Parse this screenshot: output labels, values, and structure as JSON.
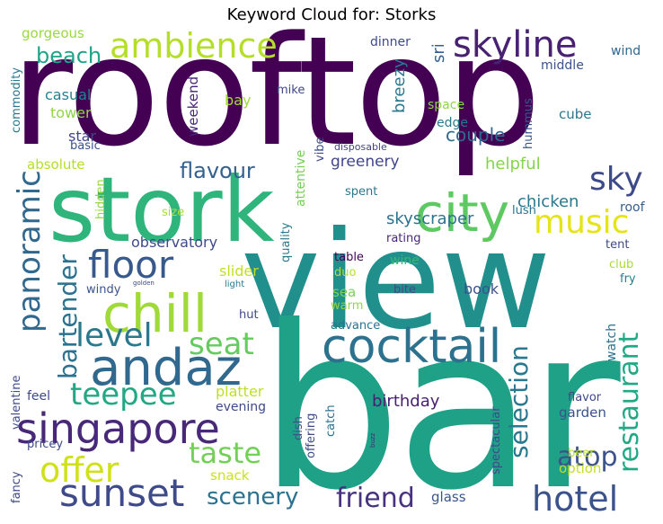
{
  "title": "Keyword Cloud for: Storks",
  "words": {
    "rooftop": "rooftop",
    "stork": "stork",
    "view": "view",
    "bar": "bar",
    "city": "city",
    "cocktail": "cocktail",
    "andaz": "andaz",
    "singapore": "singapore",
    "chill": "chill",
    "ambience": "ambience",
    "skyline": "skyline",
    "music": "music",
    "sunset": "sunset",
    "offer": "offer",
    "hotel": "hotel",
    "floor": "floor",
    "panoramic": "panoramic",
    "level": "level",
    "seat": "seat",
    "teepee": "teepee",
    "taste": "taste",
    "friend": "friend",
    "scenery": "scenery",
    "atop": "atop",
    "restaurant": "restaurant",
    "selection": "selection",
    "beach": "beach",
    "sky": "sky",
    "flavour": "flavour",
    "bartender": "bartender",
    "observatory": "observatory",
    "skyscraper": "skyscraper",
    "greenery": "greenery",
    "couple": "couple",
    "helpful": "helpful",
    "chicken": "chicken",
    "birthday": "birthday",
    "gorgeous": "gorgeous",
    "commodity": "commodity",
    "casual": "casual",
    "tower": "tower",
    "star": "star",
    "basic": "basic",
    "absolute": "absolute",
    "hidden": "hidden",
    "size": "size",
    "weekend": "weekend",
    "mike": "mike",
    "bay": "bay",
    "dinner": "dinner",
    "sri": "sri",
    "breezy": "breezy",
    "space": "space",
    "edge": "edge",
    "wind": "wind",
    "middle": "middle",
    "hummus": "hummus",
    "cube": "cube",
    "vibe": "vibe",
    "disposable": "disposable",
    "attentive": "attentive",
    "quality": "quality",
    "spent": "spent",
    "lush": "lush",
    "roof": "roof",
    "tent": "tent",
    "rating": "rating",
    "table": "table",
    "duo": "duo",
    "wine": "wine",
    "club": "club",
    "fry": "fry",
    "slider": "slider",
    "golden": "golden",
    "light": "light",
    "windy": "windy",
    "sea": "sea",
    "bite": "bite",
    "book": "book",
    "warm": "warm",
    "hut": "hut",
    "advance": "advance",
    "watch": "watch",
    "platter": "platter",
    "evening": "evening",
    "valentine": "valentine",
    "feel": "feel",
    "pricey": "pricey",
    "fancy": "fancy",
    "snack": "snack",
    "dish": "dish",
    "offering": "offering",
    "catch": "catch",
    "buzz": "buzz",
    "spectacular": "spectacular",
    "flavor": "flavor",
    "garden": "garden",
    "beer": "beer",
    "option": "option",
    "glass": "glass"
  }
}
